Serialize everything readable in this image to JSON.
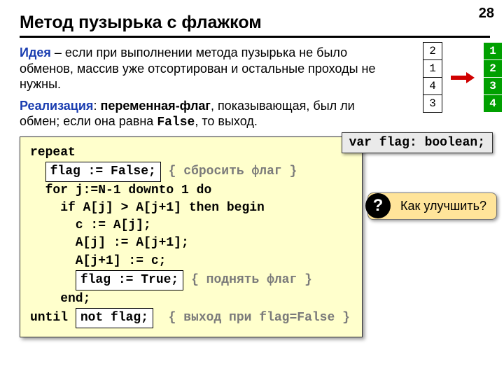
{
  "page_number": "28",
  "title": "Метод пузырька с флажком",
  "idea": {
    "label": "Идея",
    "text": " – если при выполнении метода пузырька не было обменов, массив уже отсортирован и остальные проходы не нужны."
  },
  "impl": {
    "label": "Реализация",
    "sep": ": ",
    "bold_part": "переменная-флаг",
    "rest1": ", показывающая, был ли обмен; если она равна ",
    "false_word": "False",
    "rest2": ", то выход."
  },
  "arrays": {
    "before": [
      "2",
      "1",
      "4",
      "3"
    ],
    "after": [
      "1",
      "2",
      "3",
      "4"
    ]
  },
  "var_decl": "var flag: boolean;",
  "question": "Как улучшить?",
  "q_mark": "?",
  "code": {
    "l1": "repeat",
    "flag_false": "flag := False;",
    "c1": "{ сбросить флаг }",
    "l3": "  for j:=N-1 downto 1 do",
    "l4": "    if A[j] > A[j+1] then begin",
    "l5": "      c := A[j];",
    "l6": "      A[j] := A[j+1];",
    "l7": "      A[j+1] := c;",
    "flag_true": "flag := True;",
    "c2": "{ поднять флаг }",
    "l9": "    end;",
    "l10a": "until ",
    "not_flag": "not flag;",
    "c3": "{ выход при flag=False }"
  },
  "colors": {
    "code_bg": "#ffffcc",
    "green": "#00a000",
    "arrow": "#d00000",
    "idea": "#1a3db0",
    "comment": "#7a7a7a",
    "question_bg": "#ffe49a",
    "var_bg": "#eaeaea"
  }
}
